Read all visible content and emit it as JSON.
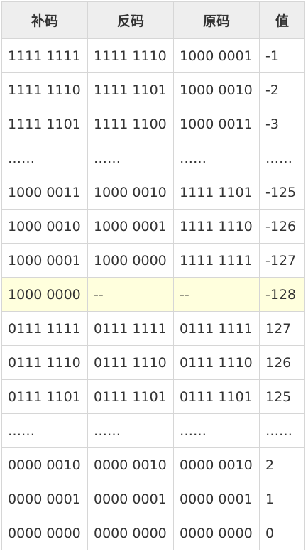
{
  "table": {
    "headers": [
      "补码",
      "反码",
      "原码",
      "值"
    ],
    "highlight_color": "#ffffdd",
    "rows": [
      [
        "1111 1111",
        "1111 1110",
        "1000 0001",
        "-1"
      ],
      [
        "1111 1110",
        "1111 1101",
        "1000 0010",
        "-2"
      ],
      [
        "1111 1101",
        "1111 1100",
        "1000 0011",
        "-3"
      ],
      [
        "……",
        "……",
        "……",
        "……"
      ],
      [
        "1000 0011",
        "1000 0010",
        "1111 1101",
        "-125"
      ],
      [
        "1000 0010",
        "1000 0001",
        "1111 1110",
        "-126"
      ],
      [
        "1000 0001",
        "1000 0000",
        "1111 1111",
        "-127"
      ],
      [
        "1000 0000",
        "--",
        "--",
        "-128"
      ],
      [
        "0111 1111",
        "0111 1111",
        "0111 1111",
        "127"
      ],
      [
        "0111 1110",
        "0111 1110",
        "0111 1110",
        "126"
      ],
      [
        "0111 1101",
        "0111 1101",
        "0111 1101",
        "125"
      ],
      [
        "……",
        "……",
        "……",
        "……"
      ],
      [
        "0000 0010",
        "0000 0010",
        "0000 0010",
        "2"
      ],
      [
        "0000 0001",
        "0000 0001",
        "0000 0001",
        "1"
      ],
      [
        "0000 0000",
        "0000 0000",
        "0000 0000",
        "0"
      ]
    ]
  }
}
